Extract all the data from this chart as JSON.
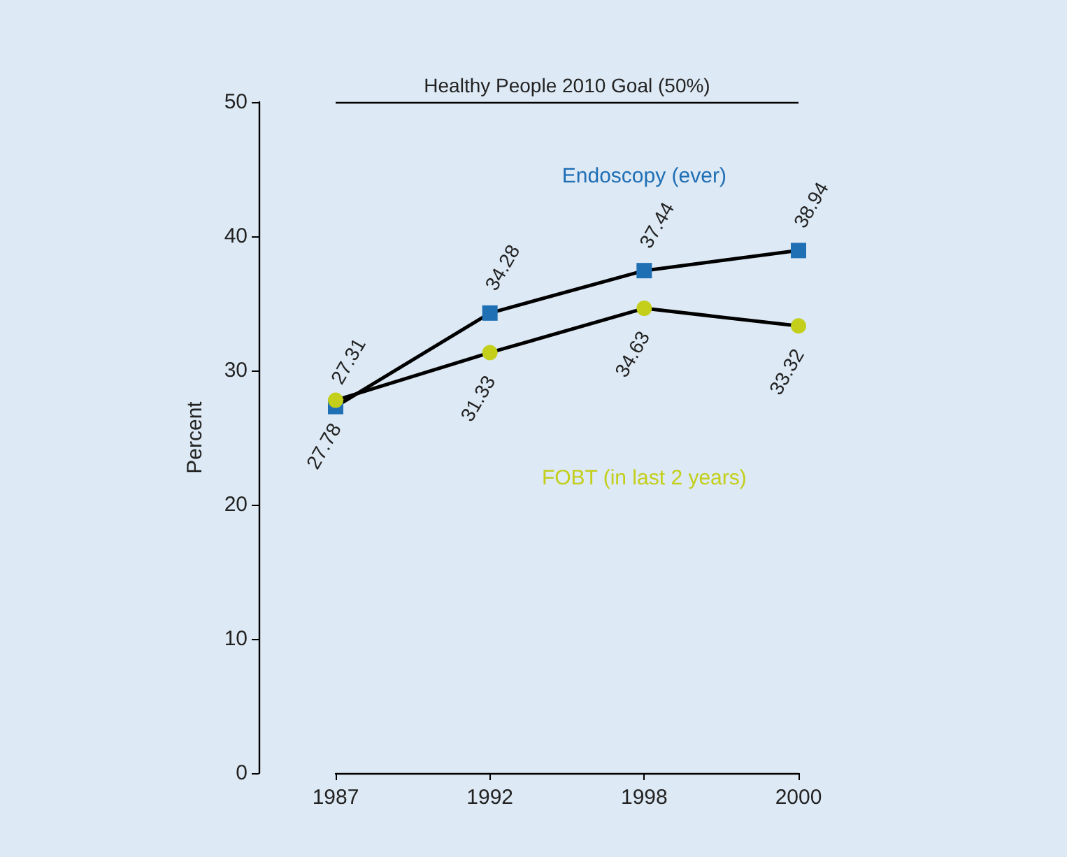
{
  "chart_data": {
    "type": "line",
    "ylabel": "Percent",
    "categories": [
      "1987",
      "1992",
      "1998",
      "2000"
    ],
    "series": [
      {
        "name": "Endoscopy (ever)",
        "color": "#1f6fb5",
        "marker": "square",
        "values": [
          27.31,
          34.28,
          37.44,
          38.94
        ]
      },
      {
        "name": "FOBT (in last 2 years)",
        "color": "#c3cf1a",
        "marker": "circle",
        "values": [
          27.78,
          31.33,
          34.63,
          33.32
        ]
      }
    ],
    "ylim": [
      0,
      50
    ],
    "yticks": [
      0,
      10,
      20,
      30,
      40,
      50
    ],
    "grid": false,
    "legend": false,
    "data_labels": true,
    "ref_lines": [
      {
        "axis": "y",
        "value": 50,
        "label": "Healthy People 2010 Goal (50%)",
        "color": "#000000"
      }
    ]
  }
}
